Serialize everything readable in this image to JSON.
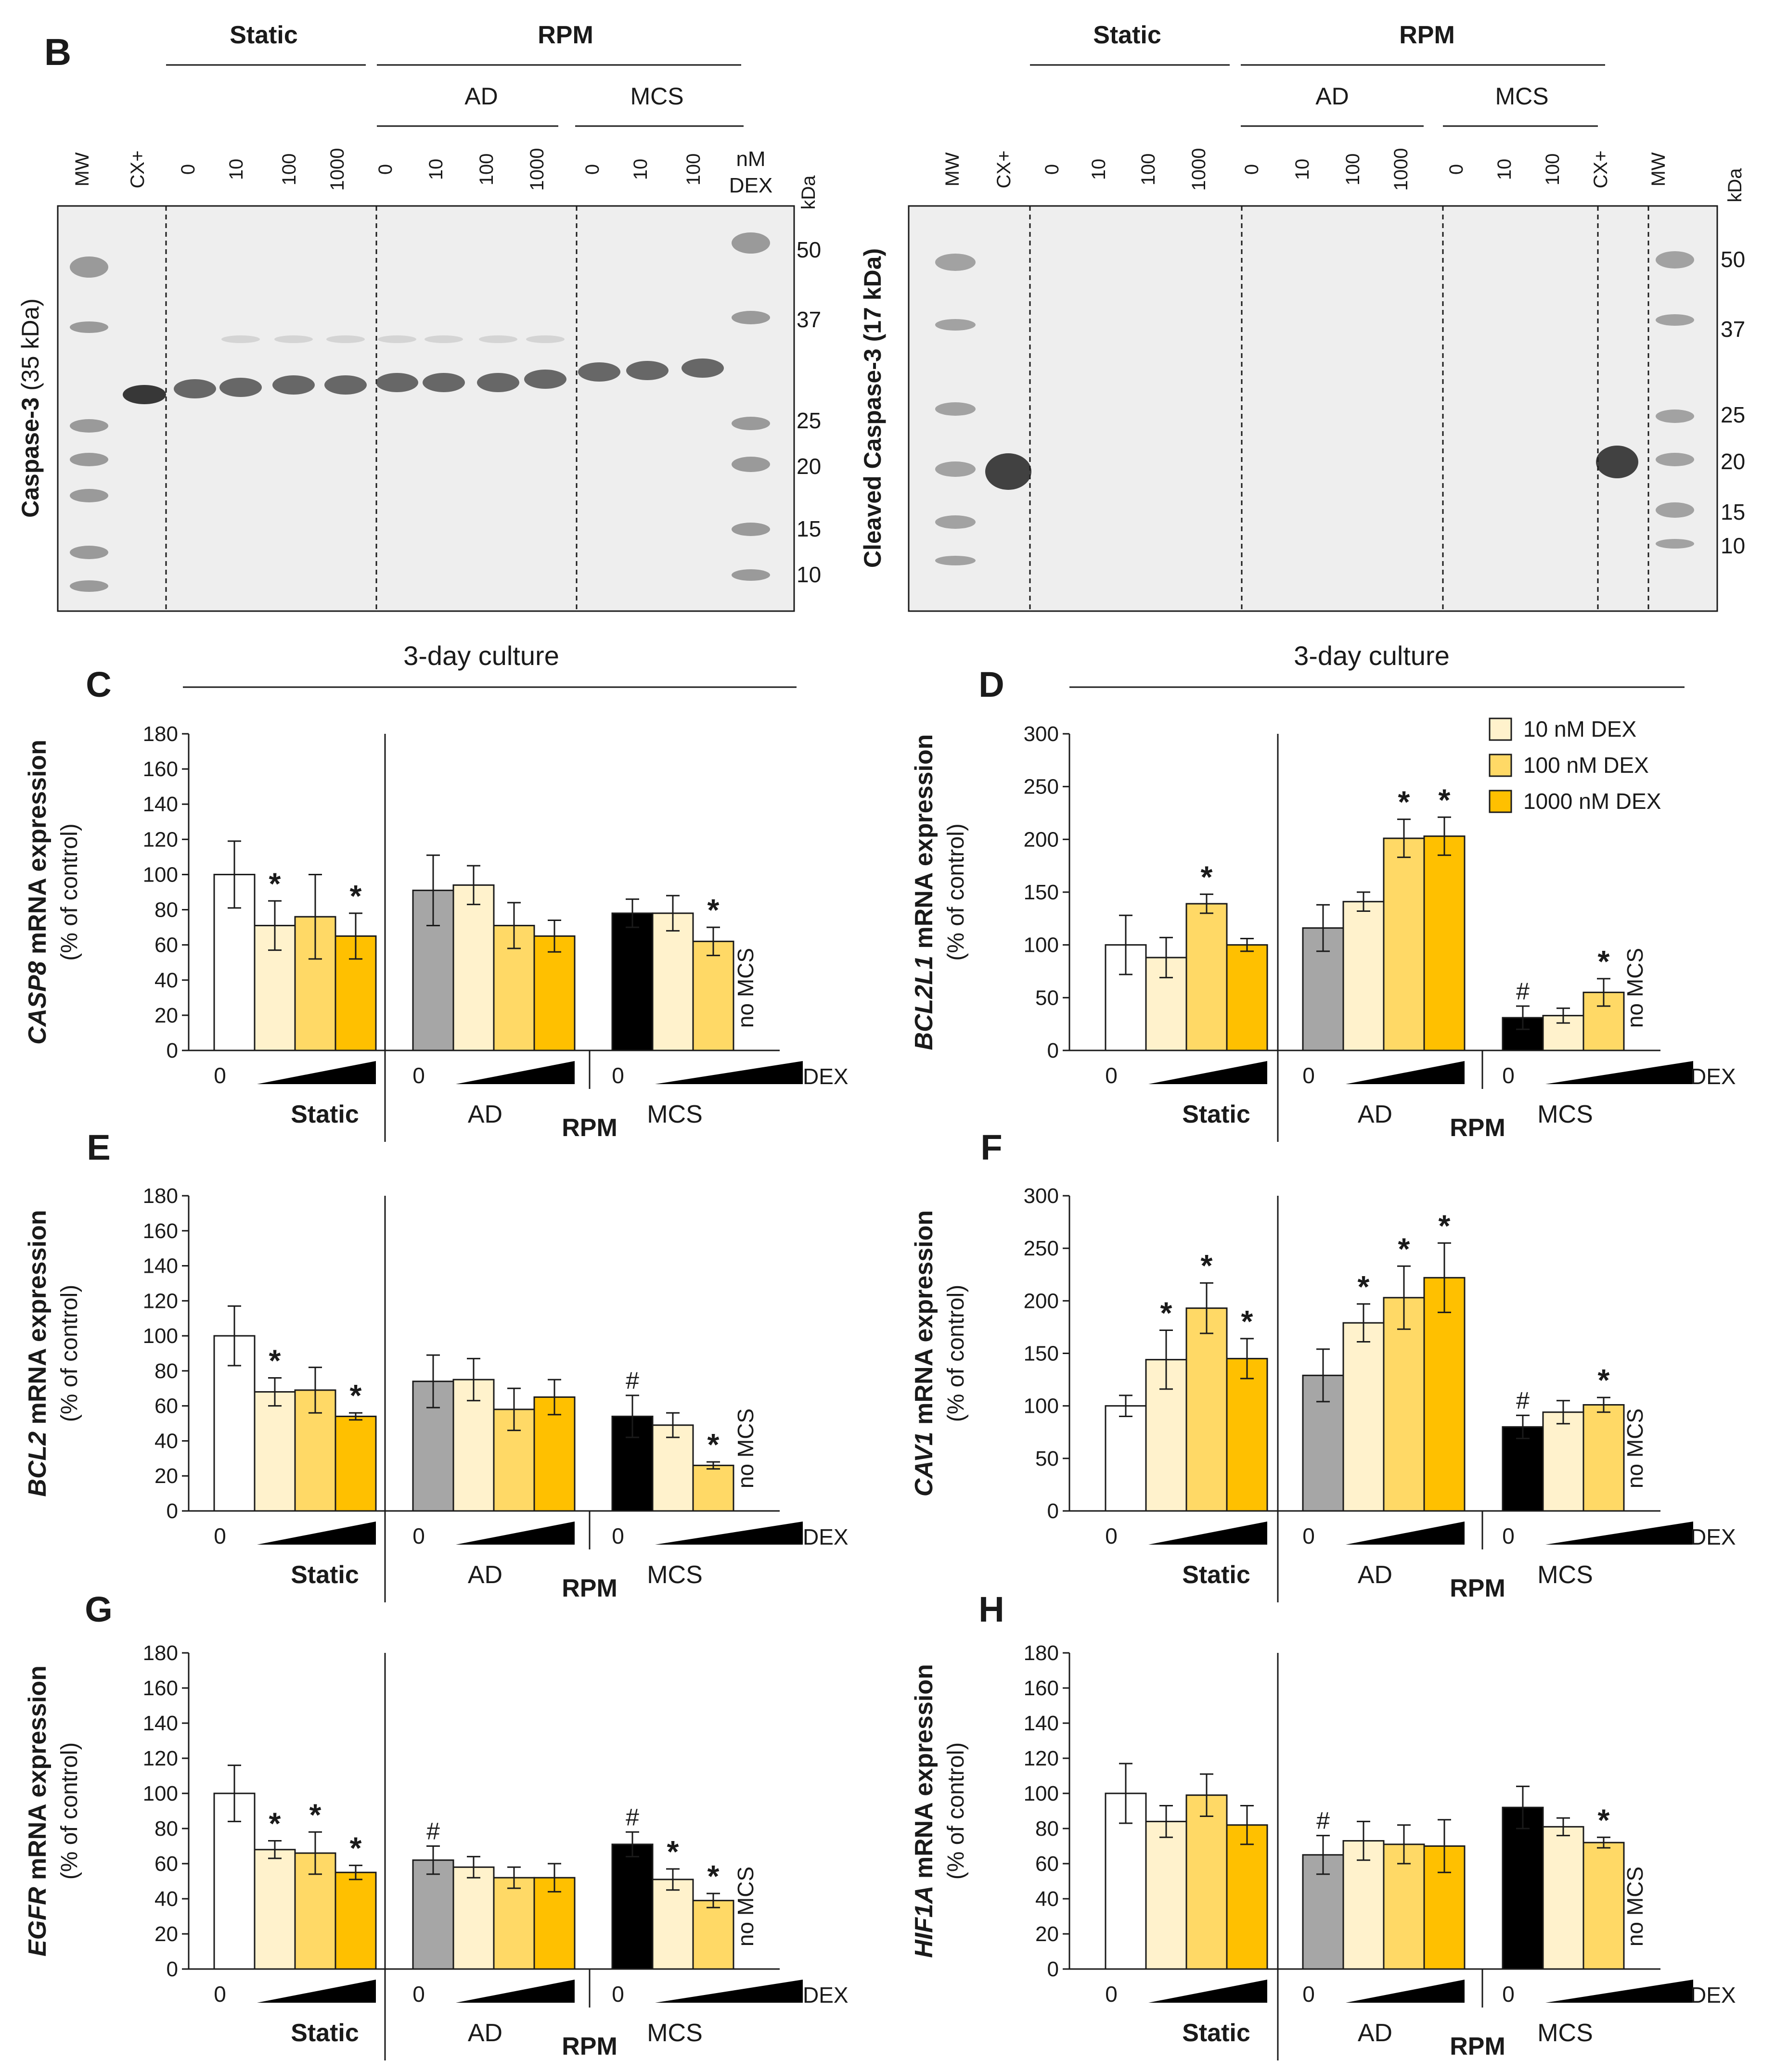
{
  "figure": {
    "panel_B": "B",
    "blot_left": {
      "ylabel_bold": "Caspase-3",
      "ylabel_rest": " (35 kDa)",
      "conditions": {
        "static": "Static",
        "rpm": "RPM",
        "ad": "AD",
        "mcs": "MCS"
      },
      "lanes": [
        "MW",
        "CX+",
        "0",
        "10",
        "100",
        "1000",
        "0",
        "10",
        "100",
        "1000",
        "0",
        "10",
        "100"
      ],
      "unit_top": "nM",
      "unit_bottom": "DEX",
      "kda": "kDa",
      "markers": [
        "50",
        "37",
        "25",
        "20",
        "15",
        "10"
      ]
    },
    "blot_right": {
      "ylabel": "Cleaved Caspase-3 (17 kDa)",
      "conditions": {
        "static": "Static",
        "rpm": "RPM",
        "ad": "AD",
        "mcs": "MCS"
      },
      "lanes": [
        "MW",
        "CX+",
        "0",
        "10",
        "100",
        "1000",
        "0",
        "10",
        "100",
        "1000",
        "0",
        "10",
        "100",
        "CX+",
        "MW"
      ],
      "kda": "kDa",
      "markers": [
        "50",
        "37",
        "25",
        "20",
        "15",
        "10"
      ]
    },
    "culture_label": "3-day culture",
    "legend": [
      "10 nM DEX",
      "100 nM DEX",
      "1000 nM DEX"
    ],
    "colors": {
      "control_static": "#ffffff",
      "control_ad": "#a6a6a6",
      "control_mcs": "#000000",
      "dex10": "#fff2cc",
      "dex100": "#ffd966",
      "dex1000": "#ffc000",
      "outline": "#1a1a1a"
    }
  },
  "chart_data": [
    {
      "type": "bar",
      "panel": "C",
      "gene": "CASP8",
      "ylabel_rest": " mRNA expression",
      "ylabel2": "(% of control)",
      "ylim": [
        0,
        180
      ],
      "yticks": [
        0,
        20,
        40,
        60,
        80,
        100,
        120,
        140,
        160,
        180
      ],
      "groups": [
        "Static",
        "AD",
        "MCS"
      ],
      "group_super": "RPM",
      "zero_label": "0",
      "dex_label": "DEX",
      "no_mcs": "no MCS",
      "series": [
        {
          "group": "Static",
          "values": [
            100,
            71,
            76,
            65
          ],
          "errors": [
            19,
            14,
            24,
            13
          ],
          "marks": [
            "",
            "*",
            "",
            "*"
          ]
        },
        {
          "group": "AD",
          "values": [
            91,
            94,
            71,
            65
          ],
          "errors": [
            20,
            11,
            13,
            9
          ],
          "marks": [
            "",
            "",
            "",
            ""
          ]
        },
        {
          "group": "MCS",
          "values": [
            78,
            78,
            62
          ],
          "errors": [
            8,
            10,
            8
          ],
          "marks": [
            "",
            "",
            "*"
          ]
        }
      ]
    },
    {
      "type": "bar",
      "panel": "D",
      "gene": "BCL2L1",
      "ylabel_rest": " mRNA expression",
      "ylabel2": "(% of control)",
      "ylim": [
        0,
        300
      ],
      "yticks": [
        0,
        50,
        100,
        150,
        200,
        250,
        300
      ],
      "groups": [
        "Static",
        "AD",
        "MCS"
      ],
      "group_super": "RPM",
      "zero_label": "0",
      "dex_label": "DEX",
      "no_mcs": "no MCS",
      "series": [
        {
          "group": "Static",
          "values": [
            100,
            88,
            139,
            100
          ],
          "errors": [
            28,
            19,
            9,
            6
          ],
          "marks": [
            "",
            "",
            "*",
            ""
          ]
        },
        {
          "group": "AD",
          "values": [
            116,
            141,
            201,
            203
          ],
          "errors": [
            22,
            9,
            18,
            18
          ],
          "marks": [
            "",
            "",
            "*",
            "*"
          ]
        },
        {
          "group": "MCS",
          "values": [
            31,
            33,
            55
          ],
          "errors": [
            11,
            7,
            13
          ],
          "marks": [
            "#",
            "",
            "*"
          ]
        }
      ]
    },
    {
      "type": "bar",
      "panel": "E",
      "gene": "BCL2",
      "ylabel_rest": " mRNA expression",
      "ylabel2": "(% of control)",
      "ylim": [
        0,
        180
      ],
      "yticks": [
        0,
        20,
        40,
        60,
        80,
        100,
        120,
        140,
        160,
        180
      ],
      "groups": [
        "Static",
        "AD",
        "MCS"
      ],
      "group_super": "RPM",
      "zero_label": "0",
      "dex_label": "DEX",
      "no_mcs": "no MCS",
      "series": [
        {
          "group": "Static",
          "values": [
            100,
            68,
            69,
            54
          ],
          "errors": [
            17,
            8,
            13,
            2
          ],
          "marks": [
            "",
            "*",
            "",
            "*"
          ]
        },
        {
          "group": "AD",
          "values": [
            74,
            75,
            58,
            65
          ],
          "errors": [
            15,
            12,
            12,
            10
          ],
          "marks": [
            "",
            "",
            "",
            ""
          ]
        },
        {
          "group": "MCS",
          "values": [
            54,
            49,
            26
          ],
          "errors": [
            12,
            7,
            2
          ],
          "marks": [
            "#",
            "",
            "*"
          ]
        }
      ]
    },
    {
      "type": "bar",
      "panel": "F",
      "gene": "CAV1",
      "ylabel_rest": " mRNA expression",
      "ylabel2": "(% of control)",
      "ylim": [
        0,
        300
      ],
      "yticks": [
        0,
        50,
        100,
        150,
        200,
        250,
        300
      ],
      "groups": [
        "Static",
        "AD",
        "MCS"
      ],
      "group_super": "RPM",
      "zero_label": "0",
      "dex_label": "DEX",
      "no_mcs": "no MCS",
      "series": [
        {
          "group": "Static",
          "values": [
            100,
            144,
            193,
            145
          ],
          "errors": [
            10,
            28,
            24,
            19
          ],
          "marks": [
            "",
            "*",
            "*",
            "*"
          ]
        },
        {
          "group": "AD",
          "values": [
            129,
            179,
            203,
            222
          ],
          "errors": [
            25,
            18,
            30,
            33
          ],
          "marks": [
            "",
            "*",
            "*",
            "*"
          ]
        },
        {
          "group": "MCS",
          "values": [
            80,
            94,
            101
          ],
          "errors": [
            11,
            11,
            7
          ],
          "marks": [
            "#",
            "",
            "*"
          ]
        }
      ]
    },
    {
      "type": "bar",
      "panel": "G",
      "gene": "EGFR",
      "ylabel_rest": " mRNA expression",
      "ylabel2": "(% of control)",
      "ylim": [
        0,
        180
      ],
      "yticks": [
        0,
        20,
        40,
        60,
        80,
        100,
        120,
        140,
        160,
        180
      ],
      "groups": [
        "Static",
        "AD",
        "MCS"
      ],
      "group_super": "RPM",
      "zero_label": "0",
      "dex_label": "DEX",
      "no_mcs": "no MCS",
      "series": [
        {
          "group": "Static",
          "values": [
            100,
            68,
            66,
            55
          ],
          "errors": [
            16,
            5,
            12,
            4
          ],
          "marks": [
            "",
            "*",
            "*",
            "*"
          ]
        },
        {
          "group": "AD",
          "values": [
            62,
            58,
            52,
            52
          ],
          "errors": [
            8,
            6,
            6,
            8
          ],
          "marks": [
            "#",
            "",
            "",
            ""
          ]
        },
        {
          "group": "MCS",
          "values": [
            71,
            51,
            39
          ],
          "errors": [
            7,
            6,
            4
          ],
          "marks": [
            "#",
            "*",
            "*"
          ]
        }
      ]
    },
    {
      "type": "bar",
      "panel": "H",
      "gene": "HIF1A",
      "ylabel_rest": " mRNA expression",
      "ylabel2": "(% of control)",
      "ylim": [
        0,
        180
      ],
      "yticks": [
        0,
        20,
        40,
        60,
        80,
        100,
        120,
        140,
        160,
        180
      ],
      "groups": [
        "Static",
        "AD",
        "MCS"
      ],
      "group_super": "RPM",
      "zero_label": "0",
      "dex_label": "DEX",
      "no_mcs": "no MCS",
      "series": [
        {
          "group": "Static",
          "values": [
            100,
            84,
            99,
            82
          ],
          "errors": [
            17,
            9,
            12,
            11
          ],
          "marks": [
            "",
            "",
            "",
            ""
          ]
        },
        {
          "group": "AD",
          "values": [
            65,
            73,
            71,
            70
          ],
          "errors": [
            11,
            11,
            11,
            15
          ],
          "marks": [
            "#",
            "",
            "",
            ""
          ]
        },
        {
          "group": "MCS",
          "values": [
            92,
            81,
            72
          ],
          "errors": [
            12,
            5,
            3
          ],
          "marks": [
            "",
            "",
            "*"
          ]
        }
      ]
    }
  ]
}
